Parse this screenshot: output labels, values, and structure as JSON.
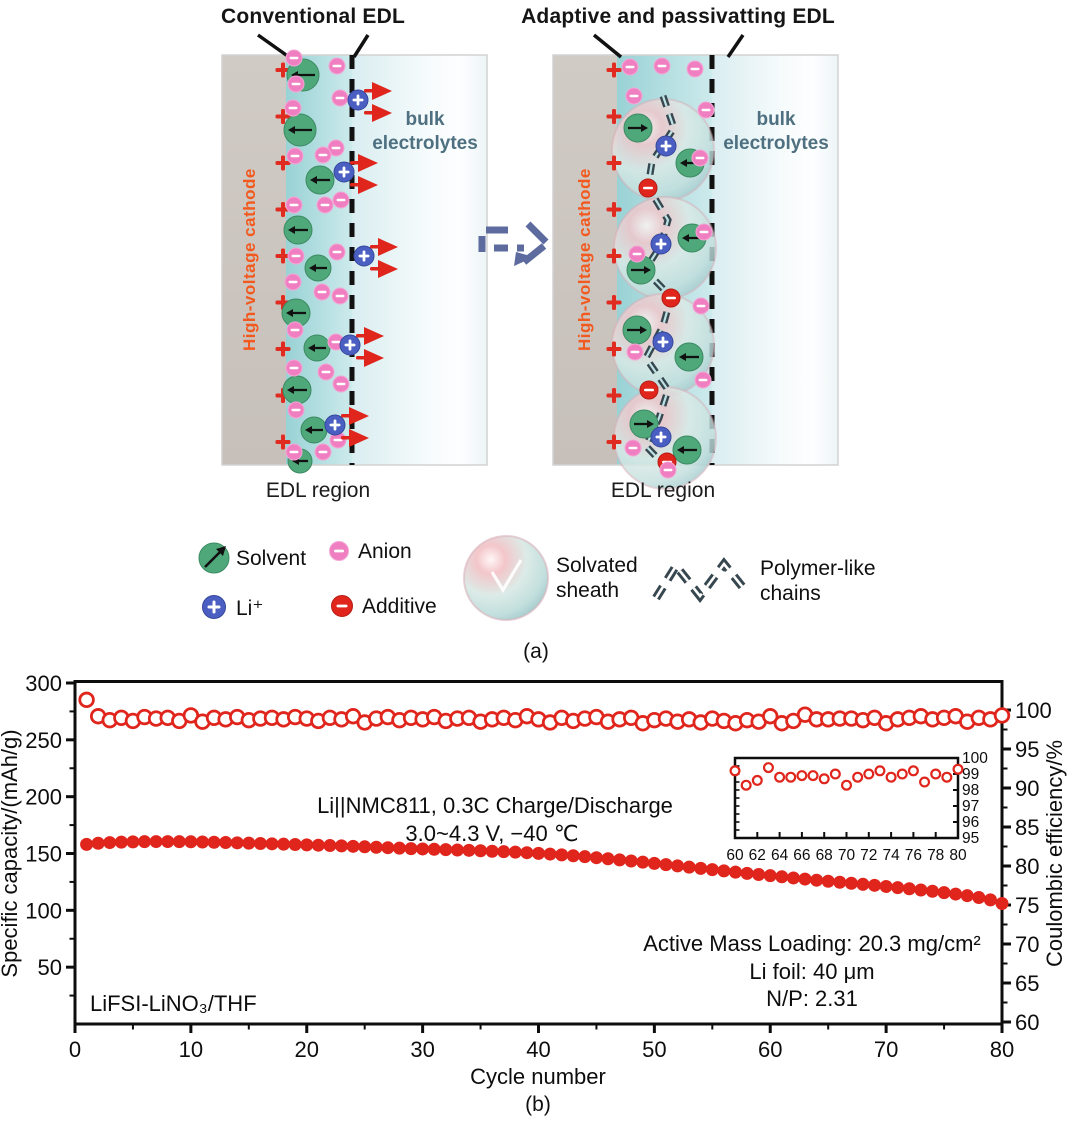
{
  "panel_a": {
    "label": "(a)",
    "left": {
      "title": "Conventional EDL",
      "cathode_label": "High-voltage cathode",
      "bulk_line1": "bulk",
      "bulk_line2": "electrolytes",
      "region_label": "EDL region"
    },
    "right": {
      "title": "Adaptive and passivatting EDL",
      "cathode_label": "High-voltage cathode",
      "bulk_line1": "bulk",
      "bulk_line2": "electrolytes",
      "region_label": "EDL region"
    },
    "legend": {
      "solvent": "Solvent",
      "anion": "Anion",
      "li_ion": "Li⁺",
      "additive": "Additive",
      "sheath_line1": "Solvated",
      "sheath_line2": "sheath",
      "chains_line1": "Polymer-like",
      "chains_line2": "chains"
    }
  },
  "panel_b": {
    "label": "(b)"
  },
  "colors": {
    "marker_red": "#e0251c",
    "solvent_green": "#4fa87a",
    "anion_pink": "#f07fc2",
    "li_blue": "#4a5fc1",
    "additive_red": "#e0251c",
    "cathode_tan": "#ccc5bf",
    "edl_teal": "#a2d8db",
    "cathode_label_orange": "#f2591f",
    "bulk_label_slate": "#4e7080",
    "transition_arrow_slate": "#5d6b9e",
    "chain_dark": "#37474f",
    "plus_red": "#e02b20"
  },
  "chart_data": {
    "type": "scatter",
    "xlabel": "Cycle number",
    "ylabel_left": "Specific capacity/(mAh/g)",
    "ylabel_right": "Coulombic efficiency/%",
    "xlim": [
      0,
      80
    ],
    "ylim_left": [
      0,
      300
    ],
    "ylim_right": [
      60,
      100
    ],
    "x_ticks": [
      0,
      10,
      20,
      30,
      40,
      50,
      60,
      70,
      80
    ],
    "y_ticks_left": [
      50,
      100,
      150,
      200,
      250,
      300
    ],
    "y_ticks_right": [
      60,
      65,
      70,
      75,
      80,
      85,
      90,
      95,
      100
    ],
    "cycle_start": 1,
    "series": [
      {
        "name": "Specific capacity",
        "axis": "left",
        "marker": "filled",
        "values": [
          158,
          159,
          159.6,
          160,
          160.2,
          160.4,
          160.5,
          160.5,
          160.4,
          160.3,
          160.1,
          159.9,
          159.7,
          159.4,
          159.1,
          158.8,
          158.5,
          158.2,
          157.9,
          157.6,
          157.3,
          157.0,
          156.7,
          156.3,
          155.9,
          155.5,
          155.1,
          154.7,
          154.3,
          154.0,
          153.7,
          153.4,
          153.1,
          152.8,
          152.4,
          152.0,
          151.6,
          151.2,
          150.7,
          150.1,
          149.5,
          148.8,
          148.0,
          147.2,
          146.3,
          145.4,
          144.4,
          143.4,
          142.4,
          141.3,
          140.2,
          139.1,
          138.0,
          136.9,
          135.8,
          134.7,
          133.6,
          132.5,
          131.5,
          130.5,
          129.5,
          128.5,
          127.5,
          126.5,
          125.6,
          124.7,
          123.8,
          122.9,
          122.0,
          121.0,
          120.0,
          119.0,
          117.9,
          116.8,
          115.6,
          114.3,
          112.9,
          111.3,
          109.2,
          106.0
        ]
      },
      {
        "name": "Coulombic efficiency",
        "axis": "right",
        "marker": "open",
        "values": [
          101.3,
          99.2,
          98.7,
          99.0,
          98.6,
          99.1,
          98.9,
          99.0,
          98.6,
          99.3,
          98.5,
          99.0,
          98.8,
          99.1,
          98.7,
          98.9,
          99.0,
          98.8,
          99.1,
          98.9,
          98.6,
          99.0,
          98.8,
          99.2,
          98.4,
          98.9,
          99.1,
          98.7,
          99.0,
          98.8,
          99.1,
          98.6,
          98.9,
          99.0,
          98.5,
          98.8,
          99.0,
          98.7,
          99.2,
          98.8,
          98.4,
          99.0,
          98.6,
          98.9,
          99.1,
          98.5,
          98.8,
          99.0,
          98.3,
          98.7,
          98.9,
          98.5,
          98.8,
          98.4,
          98.9,
          98.6,
          98.3,
          98.7,
          98.5,
          99.2,
          98.3,
          98.6,
          99.4,
          98.8,
          98.8,
          98.9,
          98.9,
          98.7,
          99.0,
          98.3,
          98.8,
          99.0,
          99.2,
          98.8,
          99.0,
          99.2,
          98.5,
          99.0,
          98.8,
          99.3
        ]
      }
    ],
    "annotations": {
      "condition_line1": "Li||NMC811, 0.3C Charge/Discharge",
      "condition_line2": "3.0~4.3 V, −40 ℃",
      "loading": "Active Mass Loading: 20.3 mg/cm²",
      "li_foil": "Li foil: 40 μm",
      "np_ratio": "N/P: 2.31",
      "electrolyte": "LiFSI-LiNO₃/THF"
    },
    "inset": {
      "source": "Coulombic efficiency, cycles 60-80",
      "xlim": [
        60,
        80
      ],
      "ylim": [
        95,
        100
      ],
      "x_ticks": [
        60,
        62,
        64,
        66,
        68,
        70,
        72,
        74,
        76,
        78,
        80
      ],
      "y_ticks": [
        95,
        96,
        97,
        98,
        99,
        100
      ]
    }
  }
}
